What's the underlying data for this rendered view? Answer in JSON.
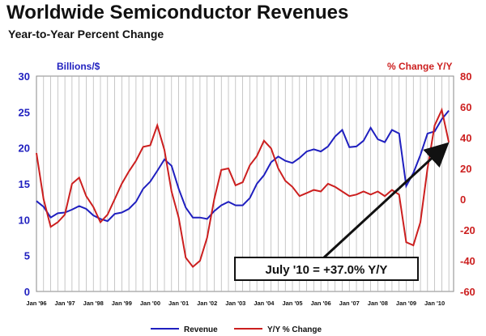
{
  "title": "Worldwide Semiconductor Revenues",
  "subtitle": "Year-to-Year Percent Change",
  "colors": {
    "revenue": "#1f1fbf",
    "change": "#cc1f1f",
    "left_axis": "#1f1fbf",
    "right_axis": "#cc1f1f"
  },
  "chart_data": {
    "type": "line",
    "title": "Worldwide Semiconductor Revenues",
    "subtitle": "Year-to-Year Percent Change",
    "y_left": {
      "label": "Billions/$",
      "range": [
        0,
        30
      ],
      "ticks": [
        "0",
        "5",
        "10",
        "15",
        "20",
        "25",
        "30"
      ]
    },
    "y_right": {
      "label": "% Change Y/Y",
      "range": [
        -60,
        80
      ],
      "ticks": [
        "-60",
        "-40",
        "-20",
        "0",
        "20",
        "40",
        "60",
        "80"
      ]
    },
    "x_ticks": [
      "Jan '96",
      "Jan '97",
      "Jan '98",
      "Jan '99",
      "Jan '00",
      "Jan '01",
      "Jan '02",
      "Jan '03",
      "Jan '04",
      "Jan '05",
      "Jan '06",
      "Jan '07",
      "Jan '08",
      "Jan '09",
      "Jan '10"
    ],
    "x_range": [
      "1996-01",
      "2010-09"
    ],
    "grid": "vertical",
    "legend_position": "bottom",
    "series": [
      {
        "name": "Revenue",
        "axis": "left",
        "x": [
          "1996-01",
          "1996-04",
          "1996-07",
          "1996-10",
          "1997-01",
          "1997-04",
          "1997-07",
          "1997-10",
          "1998-01",
          "1998-04",
          "1998-07",
          "1998-10",
          "1999-01",
          "1999-04",
          "1999-07",
          "1999-10",
          "2000-01",
          "2000-04",
          "2000-07",
          "2000-10",
          "2001-01",
          "2001-04",
          "2001-07",
          "2001-10",
          "2002-01",
          "2002-04",
          "2002-07",
          "2002-10",
          "2003-01",
          "2003-04",
          "2003-07",
          "2003-10",
          "2004-01",
          "2004-04",
          "2004-07",
          "2004-10",
          "2005-01",
          "2005-04",
          "2005-07",
          "2005-10",
          "2006-01",
          "2006-04",
          "2006-07",
          "2006-10",
          "2007-01",
          "2007-04",
          "2007-07",
          "2007-10",
          "2008-01",
          "2008-04",
          "2008-07",
          "2008-10",
          "2009-01",
          "2009-04",
          "2009-07",
          "2009-10",
          "2010-01",
          "2010-04",
          "2010-07"
        ],
        "values": [
          12.6,
          11.8,
          10.3,
          10.9,
          11.0,
          11.4,
          11.9,
          11.5,
          10.6,
          10.1,
          9.8,
          10.8,
          11.0,
          11.5,
          12.5,
          14.3,
          15.3,
          16.8,
          18.4,
          17.5,
          14.3,
          11.7,
          10.3,
          10.3,
          10.1,
          11.2,
          12.0,
          12.5,
          12.0,
          12.0,
          13.0,
          15.0,
          16.2,
          18.0,
          18.8,
          18.2,
          17.9,
          18.6,
          19.5,
          19.8,
          19.5,
          20.2,
          21.6,
          22.5,
          20.1,
          20.2,
          21.0,
          22.8,
          21.2,
          20.8,
          22.5,
          22.0,
          14.7,
          16.5,
          19.0,
          22.0,
          22.3,
          24.0,
          25.2
        ]
      },
      {
        "name": "Y/Y % Change",
        "axis": "right",
        "x": [
          "1996-01",
          "1996-04",
          "1996-07",
          "1996-10",
          "1997-01",
          "1997-04",
          "1997-07",
          "1997-10",
          "1998-01",
          "1998-04",
          "1998-07",
          "1998-10",
          "1999-01",
          "1999-04",
          "1999-07",
          "1999-10",
          "2000-01",
          "2000-04",
          "2000-07",
          "2000-10",
          "2001-01",
          "2001-04",
          "2001-07",
          "2001-10",
          "2002-01",
          "2002-04",
          "2002-07",
          "2002-10",
          "2003-01",
          "2003-04",
          "2003-07",
          "2003-10",
          "2004-01",
          "2004-04",
          "2004-07",
          "2004-10",
          "2005-01",
          "2005-04",
          "2005-07",
          "2005-10",
          "2006-01",
          "2006-04",
          "2006-07",
          "2006-10",
          "2007-01",
          "2007-04",
          "2007-07",
          "2007-10",
          "2008-01",
          "2008-04",
          "2008-07",
          "2008-10",
          "2009-01",
          "2009-04",
          "2009-07",
          "2009-10",
          "2010-01",
          "2010-04",
          "2010-07"
        ],
        "values": [
          30,
          0,
          -18,
          -15,
          -10,
          10,
          14,
          2,
          -5,
          -15,
          -10,
          0,
          10,
          18,
          25,
          34,
          35,
          48,
          32,
          5,
          -12,
          -38,
          -44,
          -40,
          -25,
          0,
          19,
          20,
          9,
          11,
          22,
          28,
          38,
          33,
          20,
          12,
          8,
          2,
          4,
          6,
          5,
          10,
          8,
          5,
          2,
          3,
          5,
          3,
          5,
          2,
          6,
          3,
          -28,
          -30,
          -15,
          20,
          48,
          58,
          37
        ]
      }
    ],
    "annotation": {
      "text": "July '10 = +37.0% Y/Y",
      "target": [
        "2010-07",
        37
      ]
    }
  }
}
